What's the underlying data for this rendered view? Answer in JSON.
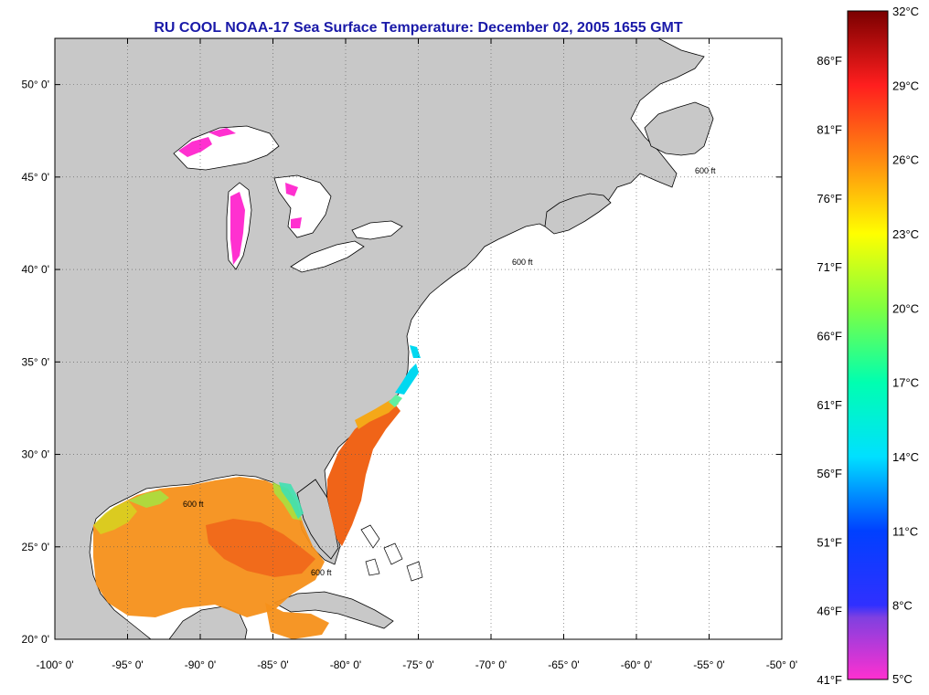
{
  "title": "RU COOL  NOAA-17  Sea Surface Temperature:  December 02, 2005 1655 GMT",
  "map": {
    "lon_ticks": [
      "-100° 0'",
      "-95° 0'",
      "-90° 0'",
      "-85° 0'",
      "-80° 0'",
      "-75° 0'",
      "-70° 0'",
      "-65° 0'",
      "-60° 0'",
      "-55° 0'",
      "-50° 0'"
    ],
    "lon_values": [
      -100,
      -95,
      -90,
      -85,
      -80,
      -75,
      -70,
      -65,
      -60,
      -55,
      -50
    ],
    "lat_ticks": [
      "50° 0'",
      "45° 0'",
      "40° 0'",
      "35° 0'",
      "30° 0'",
      "25° 0'",
      "20° 0'"
    ],
    "lat_values": [
      50,
      45,
      40,
      35,
      30,
      25,
      20
    ],
    "lon_range": [
      -100,
      -50
    ],
    "lat_range": [
      20,
      52.5
    ],
    "grid": true,
    "contour_label": "600 ft",
    "colors": {
      "land": "#c8c8c8",
      "ocean_nodata": "#ffffff",
      "frame": "#000000"
    }
  },
  "colorbar": {
    "fahrenheit": [
      "86°F",
      "81°F",
      "76°F",
      "71°F",
      "66°F",
      "61°F",
      "56°F",
      "51°F",
      "46°F",
      "41°F"
    ],
    "celsius": [
      "32°C",
      "29°C",
      "26°C",
      "23°C",
      "20°C",
      "17°C",
      "14°C",
      "11°C",
      "8°C",
      "5°C"
    ],
    "range_c": [
      5,
      32
    ],
    "stops": [
      {
        "c": 32,
        "color": "#7a0000"
      },
      {
        "c": 29,
        "color": "#ff1e1e"
      },
      {
        "c": 26,
        "color": "#ff8a10"
      },
      {
        "c": 23,
        "color": "#ffff00"
      },
      {
        "c": 20,
        "color": "#80ff40"
      },
      {
        "c": 17,
        "color": "#00ffb0"
      },
      {
        "c": 14,
        "color": "#00e0ff"
      },
      {
        "c": 11,
        "color": "#0040ff"
      },
      {
        "c": 8,
        "color": "#3030ff"
      },
      {
        "c": 7.5,
        "color": "#8040e0"
      },
      {
        "c": 5,
        "color": "#ff30d0"
      }
    ]
  }
}
